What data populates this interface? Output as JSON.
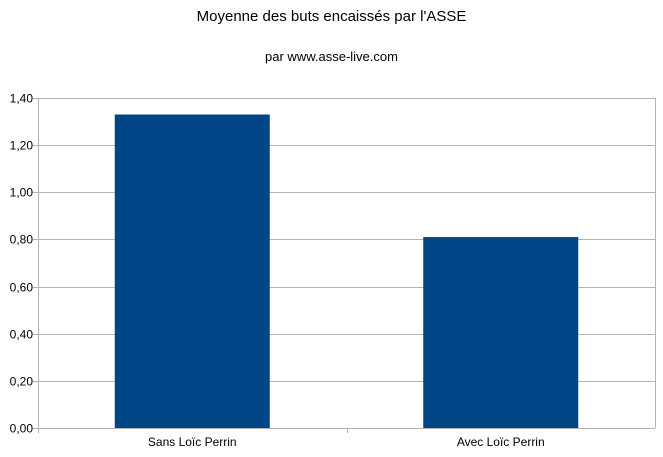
{
  "chart_data": {
    "type": "bar",
    "title": "Moyenne des buts encaissés par l'ASSE",
    "subtitle": "par www.asse-live.com",
    "categories": [
      "Sans Loïc Perrin",
      "Avec Loïc Perrin"
    ],
    "values": [
      1.33,
      0.81
    ],
    "ylim": [
      0,
      1.4
    ],
    "yticks": [
      "0,00",
      "0,20",
      "0,40",
      "0,60",
      "0,80",
      "1,00",
      "1,20",
      "1,40"
    ],
    "ytick_values": [
      0,
      0.2,
      0.4,
      0.6,
      0.8,
      1.0,
      1.2,
      1.4
    ],
    "grid": true,
    "legend": "none",
    "bar_color": "#004586",
    "grid_color": "#b3b3b3"
  }
}
